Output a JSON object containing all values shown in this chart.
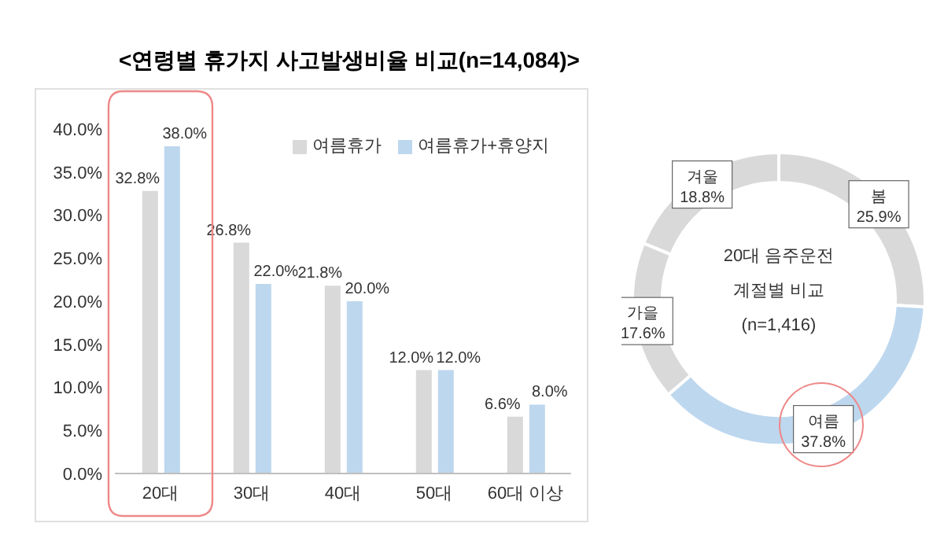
{
  "chart_data": [
    {
      "type": "bar",
      "title": "<연령별 휴가지 사고발생비율 비교(n=14,084)>",
      "categories": [
        "20대",
        "30대",
        "40대",
        "50대",
        "60대 이상"
      ],
      "series": [
        {
          "name": "여름휴가",
          "color": "#d9d9d9",
          "values": [
            32.8,
            26.8,
            21.8,
            12.0,
            6.6
          ],
          "value_labels": [
            "32.8%",
            "26.8%",
            "21.8%",
            "12.0%",
            "6.6%"
          ]
        },
        {
          "name": "여름휴가+휴양지",
          "color": "#bdd7ee",
          "values": [
            38.0,
            22.0,
            20.0,
            12.0,
            8.0
          ],
          "value_labels": [
            "38.0%",
            "22.0%",
            "20.0%",
            "12.0%",
            "8.0%"
          ]
        }
      ],
      "ylim": [
        0,
        40
      ],
      "yticks": [
        {
          "value": 0,
          "label": "0.0%"
        },
        {
          "value": 5,
          "label": "5.0%"
        },
        {
          "value": 10,
          "label": "10.0%"
        },
        {
          "value": 15,
          "label": "15.0%"
        },
        {
          "value": 20,
          "label": "20.0%"
        },
        {
          "value": 25,
          "label": "25.0%"
        },
        {
          "value": 30,
          "label": "30.0%"
        },
        {
          "value": 35,
          "label": "35.0%"
        },
        {
          "value": 40,
          "label": "40.0%"
        }
      ],
      "grid": false,
      "legend": "top right"
    },
    {
      "type": "donut",
      "title": "20대 음주운전 계절별 비교",
      "subtitle": "(n=1,416)",
      "categories": [
        "봄",
        "여름",
        "가을",
        "겨울"
      ],
      "values": [
        25.9,
        37.8,
        17.6,
        18.8
      ],
      "value_labels": [
        "25.9%",
        "37.8%",
        "17.6%",
        "18.8%"
      ],
      "colors": [
        "#d9d9d9",
        "#bdd7ee",
        "#d9d9d9",
        "#d9d9d9"
      ],
      "legend": false
    }
  ]
}
